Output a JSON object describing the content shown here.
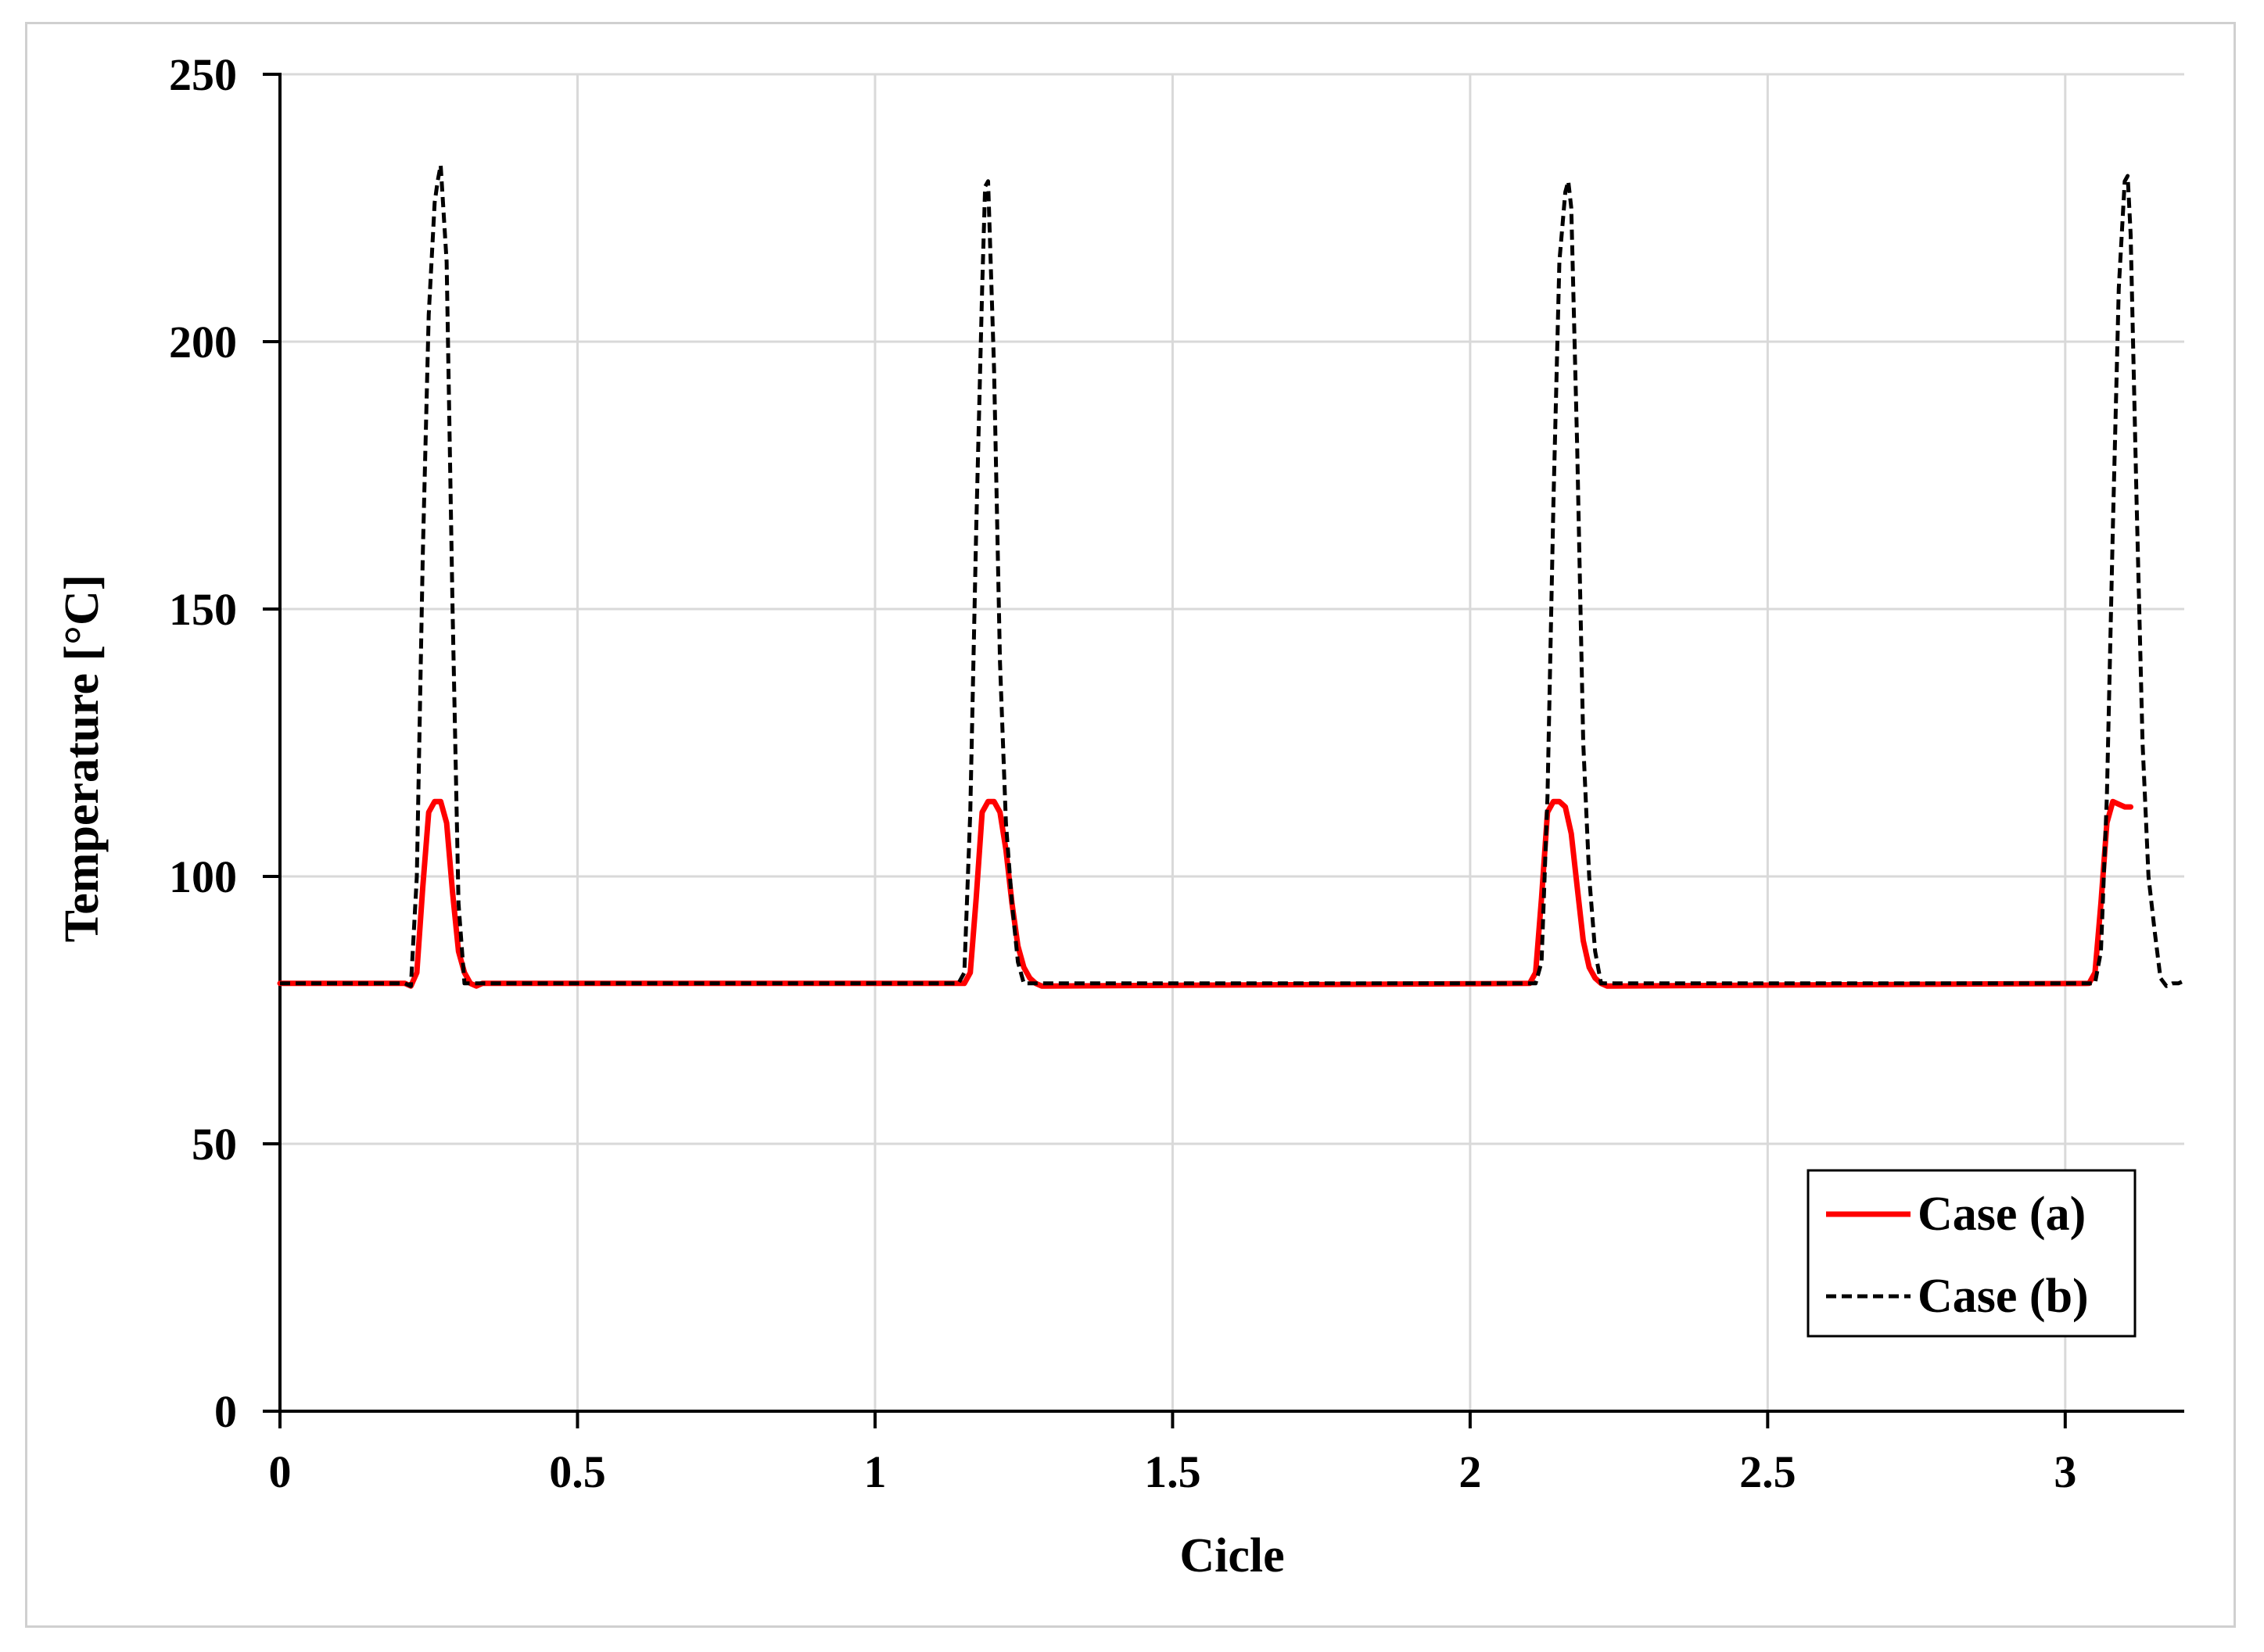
{
  "chart_data": {
    "type": "line",
    "xlabel": "Cicle",
    "ylabel": "Temperature [°C]",
    "xlim": [
      0,
      3.2
    ],
    "ylim": [
      0,
      250
    ],
    "xticks": [
      0,
      0.5,
      1,
      1.5,
      2,
      2.5,
      3
    ],
    "xtick_labels": [
      "0",
      "0.5",
      "1",
      "1.5",
      "2",
      "2.5",
      "3"
    ],
    "yticks": [
      0,
      50,
      100,
      150,
      200,
      250
    ],
    "ytick_labels": [
      "0",
      "50",
      "100",
      "150",
      "200",
      "250"
    ],
    "grid": true,
    "legend_position": "bottom-right",
    "series": [
      {
        "name": "Case (a)",
        "color": "#ff0000",
        "style": "solid",
        "x": [
          0,
          0.21,
          0.22,
          0.23,
          0.24,
          0.25,
          0.26,
          0.27,
          0.28,
          0.29,
          0.3,
          0.31,
          0.32,
          0.33,
          0.34,
          1.15,
          1.16,
          1.17,
          1.18,
          1.19,
          1.2,
          1.21,
          1.22,
          1.23,
          1.24,
          1.25,
          1.26,
          1.27,
          1.28,
          2.1,
          2.11,
          2.12,
          2.13,
          2.14,
          2.15,
          2.16,
          2.17,
          2.18,
          2.19,
          2.2,
          2.21,
          2.22,
          2.23,
          3.04,
          3.05,
          3.06,
          3.07,
          3.08,
          3.09,
          3.1,
          3.11
        ],
        "y": [
          80,
          80,
          79.5,
          82,
          98,
          112,
          114,
          114,
          110,
          97,
          86,
          82,
          80,
          79.5,
          80,
          80,
          82,
          96,
          112,
          114,
          114,
          112,
          105,
          95,
          87,
          83,
          81,
          80,
          79.5,
          80,
          82,
          96,
          112,
          114,
          114,
          113,
          108,
          98,
          88,
          83,
          81,
          80,
          79.5,
          80,
          82,
          95,
          110,
          114,
          113.5,
          113,
          113
        ]
      },
      {
        "name": "Case (b)",
        "color": "#000000",
        "style": "dashed",
        "x": [
          0,
          0.21,
          0.22,
          0.23,
          0.24,
          0.25,
          0.26,
          0.265,
          0.27,
          0.28,
          0.29,
          0.3,
          0.31,
          1.14,
          1.15,
          1.16,
          1.17,
          1.18,
          1.185,
          1.19,
          1.2,
          1.21,
          1.22,
          1.23,
          1.24,
          1.25,
          2.11,
          2.12,
          2.13,
          2.14,
          2.15,
          2.16,
          2.165,
          2.17,
          2.18,
          2.19,
          2.2,
          2.21,
          2.22,
          3.05,
          3.06,
          3.07,
          3.08,
          3.09,
          3.1,
          3.105,
          3.11,
          3.12,
          3.13,
          3.14,
          3.15,
          3.16,
          3.17,
          3.18,
          3.19,
          3.2
        ],
        "y": [
          80,
          80,
          79.5,
          100,
          160,
          205,
          226,
          230,
          233,
          215,
          150,
          95,
          80,
          80,
          82,
          112,
          165,
          210,
          229,
          230,
          195,
          140,
          110,
          95,
          84,
          80,
          80,
          84,
          115,
          170,
          215,
          228,
          230,
          225,
          180,
          125,
          100,
          86,
          80,
          80,
          86,
          115,
          165,
          210,
          230,
          231,
          220,
          170,
          125,
          100,
          90,
          81,
          79.5,
          80,
          80,
          80.5
        ]
      }
    ]
  }
}
